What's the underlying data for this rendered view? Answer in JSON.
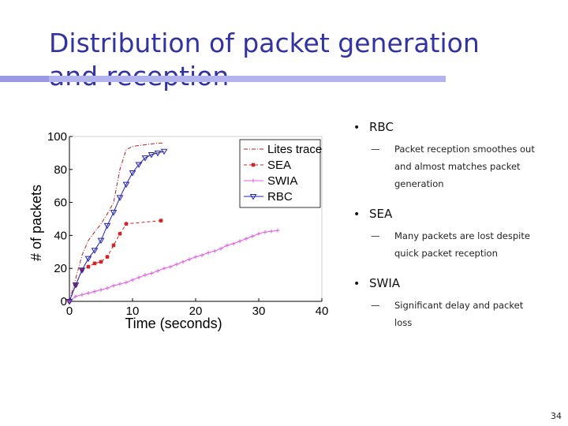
{
  "slide": {
    "title_line1": "Distribution of packet generation",
    "title_line2": "and reception",
    "page_number": "34",
    "title_color": "#3333a0",
    "bar_color": "#b3b3ee"
  },
  "bullets": [
    {
      "label": "RBC",
      "sub": [
        "Packet reception smoothes out",
        "and almost matches packet",
        "generation"
      ]
    },
    {
      "label": "SEA",
      "sub": [
        "Many packets are lost despite",
        "quick packet reception"
      ]
    },
    {
      "label": "SWIA",
      "sub": [
        "Significant delay and packet",
        "loss"
      ]
    }
  ],
  "chart_data": {
    "type": "line",
    "xlabel": "Time (seconds)",
    "ylabel": "# of packets",
    "xlim": [
      0,
      40
    ],
    "ylim": [
      0,
      100
    ],
    "xticks": [
      0,
      10,
      20,
      30,
      40
    ],
    "yticks": [
      0,
      20,
      40,
      60,
      80,
      100
    ],
    "grid": false,
    "legend_position": "top-right",
    "series": [
      {
        "name": "Lites trace",
        "color": "#b22222",
        "style": "dashdot",
        "marker": "none",
        "x": [
          0,
          1,
          2,
          3,
          4,
          5,
          6,
          7,
          8,
          9,
          10,
          12,
          14,
          15
        ],
        "y": [
          0,
          14,
          28,
          37,
          42,
          47,
          53,
          60,
          80,
          92,
          94,
          95,
          96,
          96
        ]
      },
      {
        "name": "SEA",
        "color": "#cc2222",
        "style": "dash",
        "marker": "star",
        "x": [
          0,
          1,
          2,
          3,
          4,
          5,
          6,
          7,
          8,
          9,
          14.5
        ],
        "y": [
          0,
          10,
          19,
          21,
          23,
          24,
          27,
          34,
          41,
          47,
          49
        ]
      },
      {
        "name": "SWIA",
        "color": "#e060e0",
        "style": "solid",
        "marker": "plus",
        "x": [
          0,
          1,
          2,
          3,
          4,
          5,
          6,
          7,
          8,
          9,
          10,
          11,
          12,
          13,
          14,
          15,
          16,
          17,
          18,
          19,
          20,
          21,
          22,
          23,
          24,
          25,
          26,
          27,
          28,
          29,
          30,
          31,
          32,
          33
        ],
        "y": [
          0,
          3,
          4,
          5,
          6,
          7,
          8,
          9.5,
          10.5,
          11.5,
          13,
          14.5,
          16,
          17,
          18.5,
          20,
          21,
          22.5,
          24,
          25.5,
          27,
          28,
          29.5,
          30.5,
          32,
          34,
          35,
          36.5,
          38,
          39.5,
          41,
          42,
          42.5,
          43
        ]
      },
      {
        "name": "RBC",
        "color": "#2222aa",
        "style": "solid",
        "marker": "triangle-down",
        "x": [
          0,
          1,
          2,
          3,
          4,
          5,
          6,
          7,
          8,
          9,
          10,
          11,
          12,
          13,
          14,
          15
        ],
        "y": [
          0,
          10,
          19,
          26,
          31,
          37,
          46,
          54,
          63,
          71,
          78,
          83,
          87,
          89,
          90,
          91
        ]
      }
    ]
  }
}
